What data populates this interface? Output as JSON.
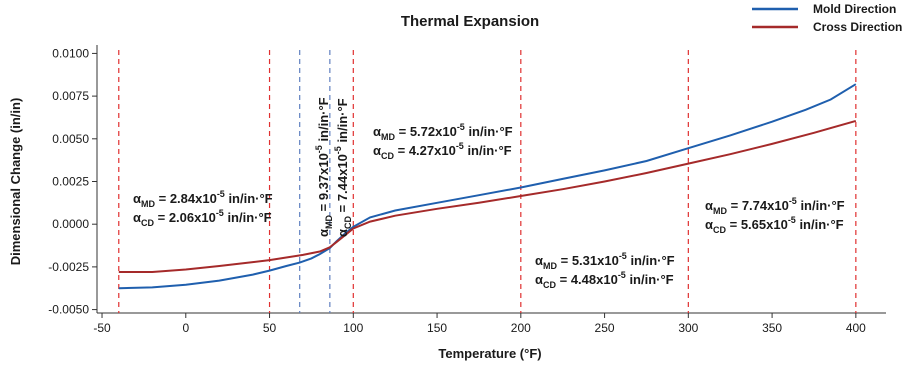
{
  "chart_data": {
    "type": "line",
    "title": "Thermal Expansion",
    "xlabel": "Temperature (°F)",
    "ylabel": "Dimensional Change (in/in)",
    "xlim": [
      -53,
      418
    ],
    "ylim": [
      -0.0052,
      0.0102
    ],
    "xticks": [
      "-50",
      "0",
      "50",
      "100",
      "150",
      "200",
      "250",
      "300",
      "350",
      "400"
    ],
    "yticks": [
      "-0.0050",
      "-0.0025",
      "0.0000",
      "0.0025",
      "0.0050",
      "0.0075",
      "0.0100"
    ],
    "legend_position": "top-right",
    "series": [
      {
        "name": "Mold Direction",
        "color": "#1f5fae",
        "points": [
          [
            -40,
            -0.00375
          ],
          [
            -20,
            -0.0037
          ],
          [
            0,
            -0.00355
          ],
          [
            20,
            -0.0033
          ],
          [
            40,
            -0.00295
          ],
          [
            50,
            -0.00272
          ],
          [
            60,
            -0.00245
          ],
          [
            68,
            -0.00225
          ],
          [
            75,
            -0.002
          ],
          [
            80,
            -0.00175
          ],
          [
            86,
            -0.0014
          ],
          [
            90,
            -0.001
          ],
          [
            95,
            -0.00055
          ],
          [
            100,
            -0.00015
          ],
          [
            110,
            0.0004
          ],
          [
            125,
            0.0008
          ],
          [
            150,
            0.00125
          ],
          [
            175,
            0.0017
          ],
          [
            200,
            0.00215
          ],
          [
            225,
            0.00265
          ],
          [
            250,
            0.00315
          ],
          [
            275,
            0.0037
          ],
          [
            300,
            0.00445
          ],
          [
            325,
            0.0052
          ],
          [
            350,
            0.006
          ],
          [
            370,
            0.0067
          ],
          [
            385,
            0.0073
          ],
          [
            400,
            0.0082
          ]
        ]
      },
      {
        "name": "Cross Direction",
        "color": "#a52a2a",
        "points": [
          [
            -40,
            -0.0028
          ],
          [
            -20,
            -0.0028
          ],
          [
            0,
            -0.00265
          ],
          [
            20,
            -0.00245
          ],
          [
            40,
            -0.00222
          ],
          [
            50,
            -0.0021
          ],
          [
            60,
            -0.00195
          ],
          [
            70,
            -0.0018
          ],
          [
            80,
            -0.0016
          ],
          [
            86,
            -0.00135
          ],
          [
            90,
            -0.00105
          ],
          [
            95,
            -0.00065
          ],
          [
            100,
            -0.00025
          ],
          [
            110,
            0.00015
          ],
          [
            125,
            0.0005
          ],
          [
            150,
            0.0009
          ],
          [
            175,
            0.00125
          ],
          [
            200,
            0.00165
          ],
          [
            225,
            0.00205
          ],
          [
            250,
            0.0025
          ],
          [
            275,
            0.003
          ],
          [
            300,
            0.00355
          ],
          [
            325,
            0.0041
          ],
          [
            350,
            0.0047
          ],
          [
            375,
            0.00535
          ],
          [
            400,
            0.00605
          ]
        ]
      }
    ],
    "vlines_red": [
      -40,
      50,
      100,
      200,
      300,
      400
    ],
    "vlines_blue": [
      68,
      86
    ],
    "red_color": "#e03030",
    "blue_color": "#6080c0",
    "annotations": [
      {
        "md": "2.84",
        "cd": "2.06"
      },
      {
        "md": "9.37",
        "cd": "7.44"
      },
      {
        "md": "5.72",
        "cd": "4.27"
      },
      {
        "md": "5.31",
        "cd": "4.48"
      },
      {
        "md": "7.74",
        "cd": "5.65"
      }
    ],
    "ann_symbol": "α",
    "ann_sub_md": "MD",
    "ann_sub_cd": "CD",
    "ann_eq": " = ",
    "ann_mult": "x10",
    "ann_exp": "-5",
    "ann_unit": " in/in·°F"
  }
}
